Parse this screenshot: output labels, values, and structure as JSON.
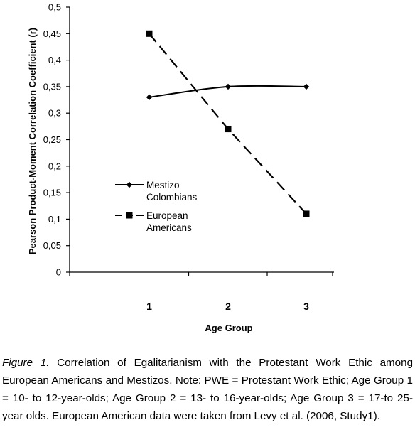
{
  "chart_data": {
    "type": "line",
    "x": [
      1,
      2,
      3
    ],
    "categories": [
      "1",
      "2",
      "3"
    ],
    "xlabel": "Age Group",
    "ylabel": "Pearson Product-Moment Correlation Coefficient (r)",
    "ylim": [
      0,
      0.5
    ],
    "yticks": [
      0,
      0.05,
      0.1,
      0.15,
      0.2,
      0.25,
      0.3,
      0.35,
      0.4,
      0.45,
      0.5
    ],
    "ytick_labels": [
      "0",
      "0,05",
      "0,1",
      "0,15",
      "0,2",
      "0,25",
      "0,3",
      "0,35",
      "0,4",
      "0,45",
      "0,5"
    ],
    "grid": false,
    "legend_position": "left",
    "series": [
      {
        "name_lines": [
          "Mestizo",
          "Colombians"
        ],
        "values": [
          0.33,
          0.35,
          0.35
        ],
        "marker": "diamond",
        "line_style": "solid-smooth",
        "color": "#000000"
      },
      {
        "name_lines": [
          "European",
          "Americans"
        ],
        "values": [
          0.45,
          0.27,
          0.11
        ],
        "marker": "square",
        "line_style": "dashed",
        "color": "#000000"
      }
    ]
  },
  "caption": {
    "label": "Figure 1.",
    "text": " Correlation of Egalitarianism with the Protestant Work Ethic among European Americans and Mestizos. Note: PWE = Protestant Work Ethic; Age Group 1 = 10- to 12-year-olds; Age Group 2 = 13- to 16-year-olds; Age Group 3 = 17-to 25-year olds. European American data were taken from Levy et al. (2006, Study1)."
  }
}
